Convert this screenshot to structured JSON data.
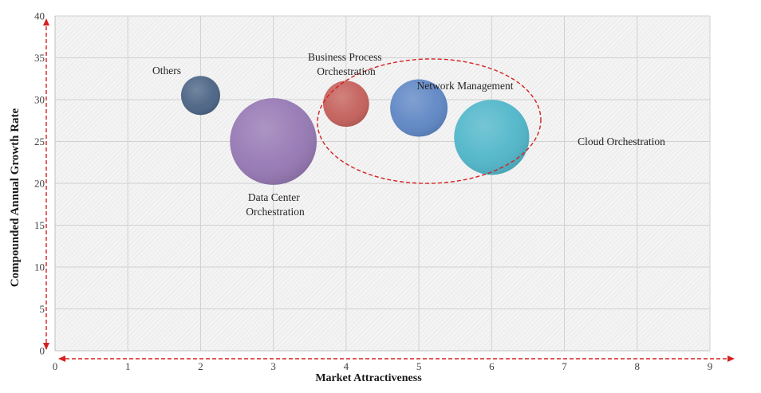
{
  "chart_data": {
    "type": "scatter",
    "subtype": "bubble",
    "xlabel": "Market Attractiveness",
    "ylabel": "Compounded  Annual  Growth Rate",
    "xlim": [
      0,
      9
    ],
    "ylim": [
      0,
      40
    ],
    "x_ticks": [
      0,
      1,
      2,
      3,
      4,
      5,
      6,
      7,
      8,
      9
    ],
    "y_ticks": [
      0,
      5,
      10,
      15,
      20,
      25,
      30,
      35,
      40
    ],
    "grid": true,
    "legend": "none",
    "points": [
      {
        "label": "Others",
        "x": 2,
        "y": 30.5,
        "size": 1.3,
        "color": "#4a6384"
      },
      {
        "label": "Data Center Orchestration",
        "x": 3,
        "y": 25,
        "size": 6.4,
        "color": "#9577b3"
      },
      {
        "label": "Business Process Orchestration",
        "x": 4,
        "y": 29.5,
        "size": 1.8,
        "color": "#c45f5a"
      },
      {
        "label": "Network Management",
        "x": 5,
        "y": 29,
        "size": 2.8,
        "color": "#5e86c4"
      },
      {
        "label": "Cloud Orchestration",
        "x": 6,
        "y": 25.5,
        "size": 4.8,
        "color": "#4fb6c9"
      }
    ],
    "annotations": {
      "highlight_ellipse": {
        "color": "#d52020",
        "style": "dashed",
        "encloses": [
          "Business Process Orchestration",
          "Network Management",
          "Cloud Orchestration"
        ]
      },
      "axis_arrows": {
        "color": "#d52020",
        "style": "dashed"
      }
    },
    "colors": {
      "grid": "#d0d0d0",
      "plot_background": "#f4f4f4",
      "hatch": "#e3e3e3"
    }
  }
}
